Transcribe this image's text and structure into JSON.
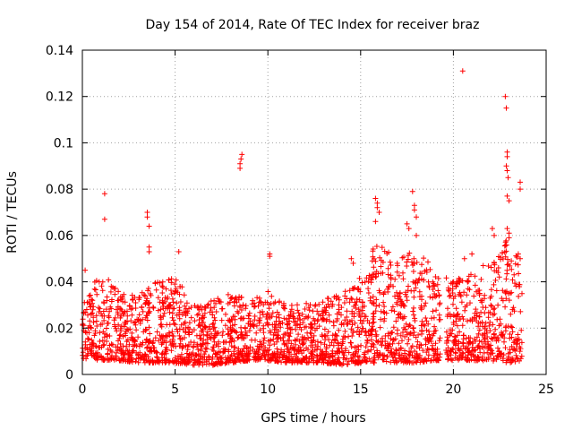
{
  "colors": {
    "series": "#ff0000",
    "grid": "#a0a0a0",
    "axis": "#000000"
  },
  "chart_data": {
    "type": "scatter",
    "title": "Day 154 of 2014, Rate Of TEC Index for receiver braz",
    "xlabel": "GPS time / hours",
    "ylabel": "ROTI / TECUs",
    "xlim": [
      0,
      25
    ],
    "ylim": [
      0,
      0.14
    ],
    "xticks": [
      "0",
      "5",
      "10",
      "15",
      "20",
      "25"
    ],
    "yticks": [
      "0",
      "0.02",
      "0.04",
      "0.06",
      "0.08",
      "0.1",
      "0.12",
      "0.14"
    ],
    "grid": true,
    "marker": "plus",
    "series": [
      {
        "name": "ROTI",
        "note": "dense band of points approx 0.004-0.035 TECU across 0-23.7 h; notable outliers listed",
        "band": [
          {
            "x": 0.0,
            "low": 0.007,
            "high": 0.03
          },
          {
            "x": 1.0,
            "low": 0.006,
            "high": 0.045
          },
          {
            "x": 2.0,
            "low": 0.006,
            "high": 0.036
          },
          {
            "x": 3.0,
            "low": 0.005,
            "high": 0.034
          },
          {
            "x": 4.0,
            "low": 0.005,
            "high": 0.04
          },
          {
            "x": 5.0,
            "low": 0.005,
            "high": 0.044
          },
          {
            "x": 6.0,
            "low": 0.004,
            "high": 0.03
          },
          {
            "x": 7.0,
            "low": 0.004,
            "high": 0.032
          },
          {
            "x": 8.0,
            "low": 0.005,
            "high": 0.035
          },
          {
            "x": 9.0,
            "low": 0.006,
            "high": 0.033
          },
          {
            "x": 10.0,
            "low": 0.006,
            "high": 0.036
          },
          {
            "x": 11.0,
            "low": 0.005,
            "high": 0.03
          },
          {
            "x": 12.0,
            "low": 0.005,
            "high": 0.031
          },
          {
            "x": 13.0,
            "low": 0.005,
            "high": 0.033
          },
          {
            "x": 14.0,
            "low": 0.004,
            "high": 0.035
          },
          {
            "x": 15.0,
            "low": 0.005,
            "high": 0.042
          },
          {
            "x": 16.0,
            "low": 0.005,
            "high": 0.06
          },
          {
            "x": 17.0,
            "low": 0.005,
            "high": 0.05
          },
          {
            "x": 18.0,
            "low": 0.005,
            "high": 0.055
          },
          {
            "x": 19.0,
            "low": 0.006,
            "high": 0.045
          },
          {
            "x": 20.0,
            "low": 0.006,
            "high": 0.04
          },
          {
            "x": 21.0,
            "low": 0.006,
            "high": 0.045
          },
          {
            "x": 22.0,
            "low": 0.006,
            "high": 0.05
          },
          {
            "x": 23.0,
            "low": 0.005,
            "high": 0.06
          },
          {
            "x": 23.7,
            "low": 0.006,
            "high": 0.045
          }
        ],
        "gaps": [
          [
            19.3,
            19.6
          ]
        ],
        "outliers": [
          {
            "x": 0.15,
            "y": 0.045
          },
          {
            "x": 1.2,
            "y": 0.078
          },
          {
            "x": 1.2,
            "y": 0.067
          },
          {
            "x": 3.5,
            "y": 0.07
          },
          {
            "x": 3.5,
            "y": 0.068
          },
          {
            "x": 3.6,
            "y": 0.064
          },
          {
            "x": 3.6,
            "y": 0.055
          },
          {
            "x": 3.6,
            "y": 0.053
          },
          {
            "x": 5.2,
            "y": 0.053
          },
          {
            "x": 8.5,
            "y": 0.089
          },
          {
            "x": 8.5,
            "y": 0.091
          },
          {
            "x": 8.55,
            "y": 0.093
          },
          {
            "x": 8.6,
            "y": 0.095
          },
          {
            "x": 10.1,
            "y": 0.052
          },
          {
            "x": 10.1,
            "y": 0.051
          },
          {
            "x": 14.5,
            "y": 0.05
          },
          {
            "x": 14.6,
            "y": 0.048
          },
          {
            "x": 15.8,
            "y": 0.076
          },
          {
            "x": 15.9,
            "y": 0.074
          },
          {
            "x": 15.9,
            "y": 0.072
          },
          {
            "x": 16.0,
            "y": 0.07
          },
          {
            "x": 15.8,
            "y": 0.066
          },
          {
            "x": 17.5,
            "y": 0.065
          },
          {
            "x": 17.6,
            "y": 0.063
          },
          {
            "x": 17.8,
            "y": 0.079
          },
          {
            "x": 17.9,
            "y": 0.073
          },
          {
            "x": 17.9,
            "y": 0.071
          },
          {
            "x": 18.0,
            "y": 0.068
          },
          {
            "x": 18.0,
            "y": 0.06
          },
          {
            "x": 20.5,
            "y": 0.131
          },
          {
            "x": 20.6,
            "y": 0.05
          },
          {
            "x": 21.0,
            "y": 0.052
          },
          {
            "x": 22.1,
            "y": 0.063
          },
          {
            "x": 22.2,
            "y": 0.06
          },
          {
            "x": 22.8,
            "y": 0.12
          },
          {
            "x": 22.85,
            "y": 0.115
          },
          {
            "x": 22.9,
            "y": 0.096
          },
          {
            "x": 22.9,
            "y": 0.094
          },
          {
            "x": 22.85,
            "y": 0.09
          },
          {
            "x": 22.9,
            "y": 0.088
          },
          {
            "x": 22.95,
            "y": 0.085
          },
          {
            "x": 22.9,
            "y": 0.077
          },
          {
            "x": 23.0,
            "y": 0.075
          },
          {
            "x": 22.9,
            "y": 0.063
          },
          {
            "x": 23.0,
            "y": 0.061
          },
          {
            "x": 23.0,
            "y": 0.059
          },
          {
            "x": 23.6,
            "y": 0.083
          },
          {
            "x": 23.6,
            "y": 0.08
          },
          {
            "x": 23.5,
            "y": 0.052
          },
          {
            "x": 23.6,
            "y": 0.05
          }
        ]
      }
    ]
  }
}
